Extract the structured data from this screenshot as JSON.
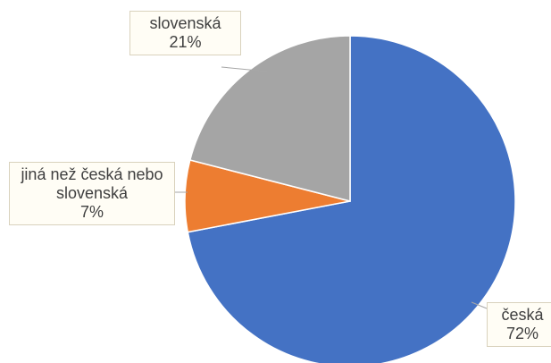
{
  "chart_data": {
    "type": "pie",
    "categories": [
      "česká",
      "jiná než česká nebo slovenská",
      "slovenská"
    ],
    "values": [
      72,
      7,
      21
    ],
    "value_labels": [
      "72%",
      "7%",
      "21%"
    ],
    "colors": [
      "#4472c4",
      "#ed7d31",
      "#a5a5a5"
    ]
  }
}
